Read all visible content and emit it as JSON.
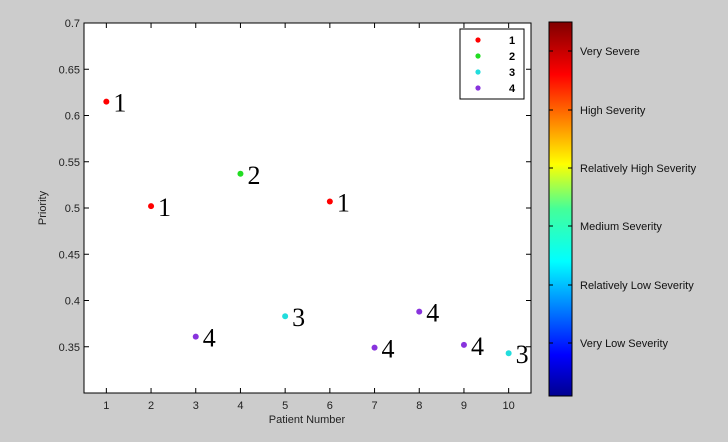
{
  "chart_data": {
    "type": "scatter",
    "xlabel": "Patient Number",
    "ylabel": "Priority",
    "xlim": [
      0.5,
      10.5
    ],
    "ylim": [
      0.3,
      0.7
    ],
    "x_ticks": [
      1,
      2,
      3,
      4,
      5,
      6,
      7,
      8,
      9,
      10
    ],
    "y_ticks": [
      0.35,
      0.4,
      0.45,
      0.5,
      0.55,
      0.6,
      0.65,
      0.7
    ],
    "y_tick_labels": [
      "0.35",
      "0.4",
      "0.45",
      "0.5",
      "0.55",
      "0.6",
      "0.65",
      "0.7"
    ],
    "points": [
      {
        "x": 1,
        "y": 0.615,
        "label": "1",
        "cls": "1"
      },
      {
        "x": 2,
        "y": 0.502,
        "label": "1",
        "cls": "1"
      },
      {
        "x": 3,
        "y": 0.361,
        "label": "4",
        "cls": "4"
      },
      {
        "x": 4,
        "y": 0.537,
        "label": "2",
        "cls": "2"
      },
      {
        "x": 5,
        "y": 0.383,
        "label": "3",
        "cls": "3"
      },
      {
        "x": 6,
        "y": 0.507,
        "label": "1",
        "cls": "1"
      },
      {
        "x": 7,
        "y": 0.349,
        "label": "4",
        "cls": "4"
      },
      {
        "x": 8,
        "y": 0.388,
        "label": "4",
        "cls": "4"
      },
      {
        "x": 9,
        "y": 0.352,
        "label": "4",
        "cls": "4"
      },
      {
        "x": 10,
        "y": 0.343,
        "label": "3",
        "cls": "3"
      }
    ],
    "legend": {
      "placement": "top-right",
      "entries": [
        {
          "name": "1",
          "color": "#ff0000"
        },
        {
          "name": "2",
          "color": "#22dd22"
        },
        {
          "name": "3",
          "color": "#22dddd"
        },
        {
          "name": "4",
          "color": "#8833dd"
        }
      ]
    },
    "colorbar": {
      "colormap": "jet",
      "labels": [
        "Very Severe",
        "High Severity",
        "Relatively High Severity",
        "Medium Severity",
        "Relatively Low Severity",
        "Very Low Severity"
      ]
    }
  }
}
